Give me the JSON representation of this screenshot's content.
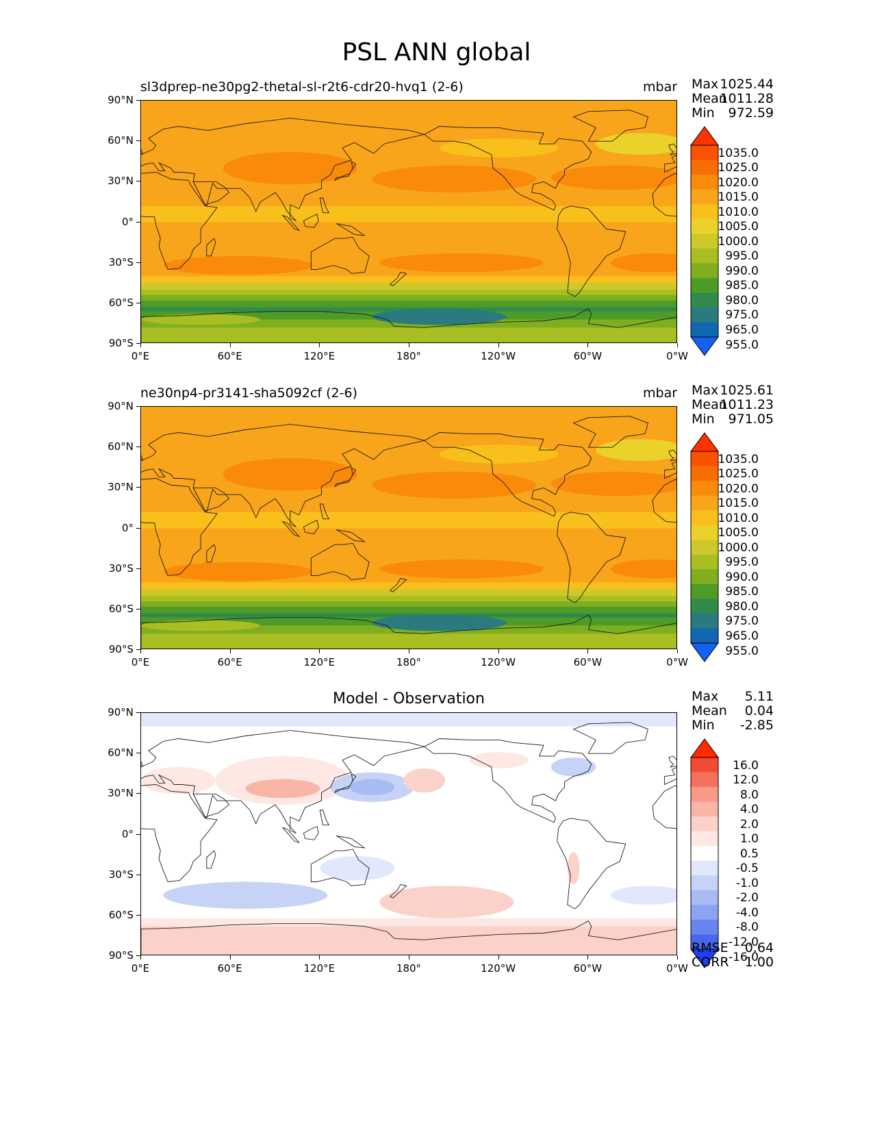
{
  "figure": {
    "title": "PSL ANN global"
  },
  "lat_ticks": [
    "90°N",
    "60°N",
    "30°N",
    "0°",
    "30°S",
    "60°S",
    "90°S"
  ],
  "lon_ticks": [
    "0°E",
    "60°E",
    "120°E",
    "180°",
    "120°W",
    "60°W",
    "0°W"
  ],
  "panels": [
    {
      "title": "sl3dprep-ne30pg2-thetal-sl-r2t6-cdr20-hvq1 (2-6)",
      "units": "mbar",
      "stats": {
        "max_label": "Max",
        "max": "1025.44",
        "mean_label": "Mean",
        "mean": "1011.28",
        "min_label": "Min",
        "min": "972.59"
      }
    },
    {
      "title": "ne30np4-pr3141-sha5092cf (2-6)",
      "units": "mbar",
      "stats": {
        "max_label": "Max",
        "max": "1025.61",
        "mean_label": "Mean",
        "mean": "1011.23",
        "min_label": "Min",
        "min": "971.05"
      }
    },
    {
      "title": "Model - Observation",
      "units": "",
      "stats": {
        "max_label": "Max",
        "max": "5.11",
        "mean_label": "Mean",
        "mean": "0.04",
        "min_label": "Min",
        "min": "-2.85"
      },
      "rmse_label": "RMSE",
      "rmse": "0.64",
      "corr_label": "CORR",
      "corr": "1.00"
    }
  ],
  "colorbars": {
    "field": {
      "labels": [
        "1035.0",
        "1025.0",
        "1020.0",
        "1015.0",
        "1010.0",
        "1005.0",
        "1000.0",
        "995.0",
        "990.0",
        "985.0",
        "980.0",
        "975.0",
        "965.0",
        "955.0"
      ],
      "colors": [
        "#ff3300",
        "#fb5200",
        "#f96d00",
        "#f98a0a",
        "#f9a51b",
        "#f9bf1b",
        "#ebd22b",
        "#cdc92a",
        "#a9be23",
        "#7faf1f",
        "#4e9c27",
        "#2f8a4c",
        "#2b7a80",
        "#1268b0",
        "#1460f0"
      ]
    },
    "diff": {
      "labels": [
        "16.0",
        "12.0",
        "8.0",
        "4.0",
        "2.0",
        "1.0",
        "0.5",
        "-0.5",
        "-1.0",
        "-2.0",
        "-4.0",
        "-8.0",
        "-12.0",
        "-16.0"
      ],
      "colors": [
        "#ff2a00",
        "#f34b33",
        "#f4715c",
        "#f89a86",
        "#f9b6a7",
        "#fbd2c9",
        "#fde8e3",
        "#ffffff",
        "#e1e8fb",
        "#c6d3f6",
        "#a8bbf3",
        "#8ca3f1",
        "#6884ee",
        "#4a66ee",
        "#1f3ff5"
      ]
    }
  },
  "chart_data": [
    {
      "type": "heatmap",
      "title": "sl3dprep-ne30pg2-thetal-sl-r2t6-cdr20-hvq1 (2-6)",
      "units": "mbar",
      "projection": "PlateCarree global",
      "xlim": [
        0,
        360
      ],
      "ylim": [
        -90,
        90
      ],
      "contour_levels": [
        955,
        965,
        975,
        980,
        985,
        990,
        995,
        1000,
        1005,
        1010,
        1015,
        1020,
        1025,
        1035
      ],
      "max": 1025.44,
      "mean": 1011.28,
      "min": 972.59
    },
    {
      "type": "heatmap",
      "title": "ne30np4-pr3141-sha5092cf (2-6)",
      "units": "mbar",
      "projection": "PlateCarree global",
      "xlim": [
        0,
        360
      ],
      "ylim": [
        -90,
        90
      ],
      "contour_levels": [
        955,
        965,
        975,
        980,
        985,
        990,
        995,
        1000,
        1005,
        1010,
        1015,
        1020,
        1025,
        1035
      ],
      "max": 1025.61,
      "mean": 1011.23,
      "min": 971.05
    },
    {
      "type": "heatmap",
      "title": "Model - Observation",
      "projection": "PlateCarree global",
      "xlim": [
        0,
        360
      ],
      "ylim": [
        -90,
        90
      ],
      "contour_levels": [
        -16,
        -12,
        -8,
        -4,
        -2,
        -1,
        -0.5,
        0.5,
        1,
        2,
        4,
        8,
        12,
        16
      ],
      "max": 5.11,
      "mean": 0.04,
      "min": -2.85,
      "rmse": 0.64,
      "corr": 1.0
    }
  ]
}
